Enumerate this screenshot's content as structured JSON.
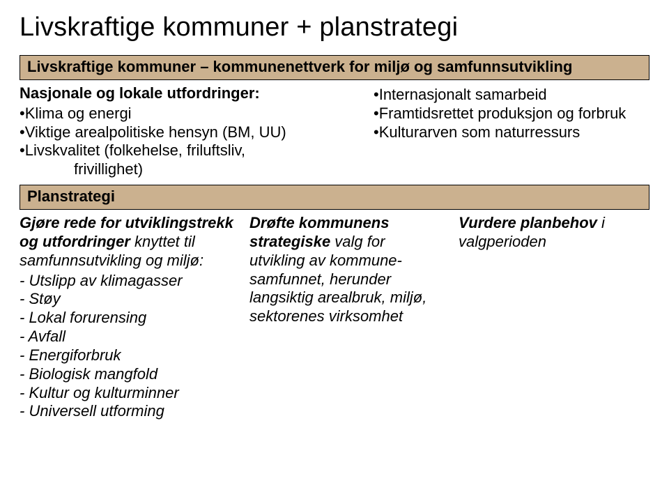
{
  "title": "Livskraftige kommuner + planstrategi",
  "band1": "Livskraftige kommuner – kommunenettverk for miljø og samfunnsutvikling",
  "top": {
    "left": {
      "heading": "Nasjonale og lokale utfordringer:",
      "b1": "•Klima og energi",
      "b2": "•Viktige arealpolitiske hensyn (BM, UU)",
      "b3": "•Livskvalitet (folkehelse, friluftsliv,",
      "b3b": "frivillighet)"
    },
    "right": {
      "b1": "•Internasjonalt samarbeid",
      "b2": "•Framtidsrettet produksjon og forbruk",
      "b3": "•Kulturarven som naturressurs"
    }
  },
  "band2": "Planstrategi",
  "bottom": {
    "c1": {
      "l1a": "Gjøre rede for utviklingstrekk",
      "l1b": "og utfordringer",
      "l1c": " knyttet til",
      "l2": "samfunnsutvikling og miljø:",
      "i1": "- Utslipp av klimagasser",
      "i2": "- Støy",
      "i3": "- Lokal forurensing",
      "i4": "- Avfall",
      "i5": "- Energiforbruk",
      "i6": "- Biologisk mangfold",
      "i7": "- Kultur og kulturminner",
      "i8": "- Universell utforming"
    },
    "c2": {
      "l1a": "Drøfte kommunens",
      "l1b": "strategiske",
      "l1c": " valg for",
      "l2": "utvikling av kommune-",
      "l3": "samfunnet, herunder",
      "l4": "langsiktig arealbruk, miljø,",
      "l5": "sektorenes virksomhet"
    },
    "c3": {
      "l1a": "Vurdere planbehov",
      "l1b": " i",
      "l2": "valgperioden"
    }
  }
}
